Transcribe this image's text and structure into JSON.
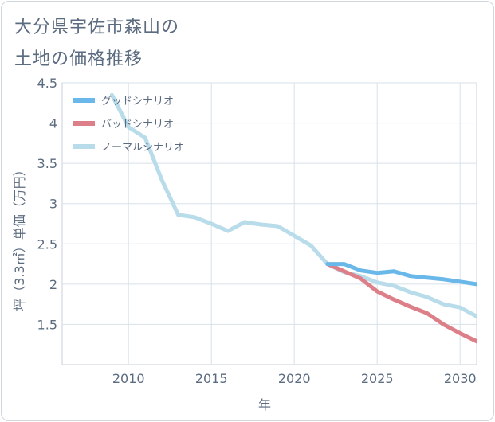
{
  "title_line1": "大分県宇佐市森山の",
  "title_line2": "土地の価格推移",
  "chart_data": {
    "type": "line",
    "xlabel": "年",
    "ylabel": "坪（3.3㎡）単価（万円）",
    "xlim": [
      2006,
      2031
    ],
    "ylim": [
      1.0,
      4.5
    ],
    "xticks": [
      2010,
      2015,
      2020,
      2025,
      2030
    ],
    "xtick_labels": [
      "2010",
      "2015",
      "2020",
      "2025",
      "2030"
    ],
    "yticks": [
      1.5,
      2,
      2.5,
      3,
      3.5,
      4,
      4.5
    ],
    "ytick_labels": [
      "1.5",
      "2",
      "2.5",
      "3",
      "3.5",
      "4",
      "4.5"
    ],
    "grid": true,
    "legend_position": "top-left",
    "series": [
      {
        "name": "グッドシナリオ",
        "color": "#6ab8ea",
        "x": [
          2022,
          2023,
          2024,
          2025,
          2026,
          2027,
          2028,
          2029,
          2030,
          2031
        ],
        "y": [
          2.25,
          2.25,
          2.17,
          2.14,
          2.16,
          2.1,
          2.08,
          2.06,
          2.03,
          2.0
        ]
      },
      {
        "name": "バッドシナリオ",
        "color": "#dd7f88",
        "x": [
          2022,
          2023,
          2024,
          2025,
          2026,
          2027,
          2028,
          2029,
          2030,
          2031
        ],
        "y": [
          2.25,
          2.16,
          2.07,
          1.91,
          1.81,
          1.72,
          1.64,
          1.5,
          1.39,
          1.29
        ]
      },
      {
        "name": "ノーマルシナリオ",
        "color": "#b9dcea",
        "x": [
          2009,
          2010,
          2011,
          2012,
          2013,
          2014,
          2015,
          2016,
          2017,
          2018,
          2019,
          2020,
          2021,
          2022,
          2023,
          2024,
          2025,
          2026,
          2027,
          2028,
          2029,
          2030,
          2031
        ],
        "y": [
          4.35,
          3.95,
          3.82,
          3.3,
          2.86,
          2.83,
          2.75,
          2.66,
          2.77,
          2.74,
          2.72,
          2.6,
          2.48,
          2.25,
          2.15,
          2.1,
          2.02,
          1.98,
          1.9,
          1.84,
          1.75,
          1.71,
          1.6
        ]
      }
    ]
  }
}
